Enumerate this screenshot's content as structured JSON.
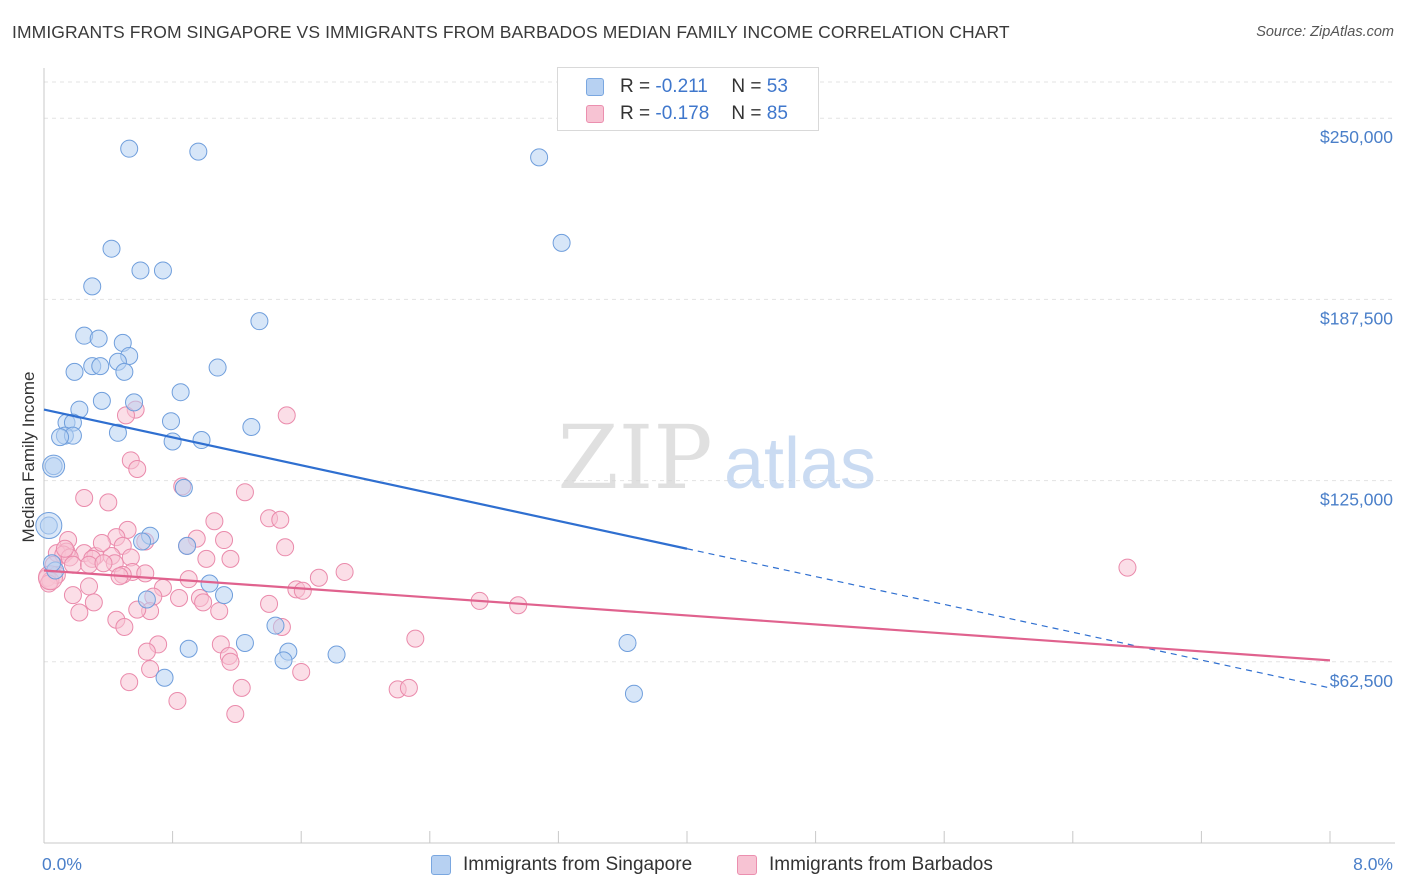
{
  "title": "IMMIGRANTS FROM SINGAPORE VS IMMIGRANTS FROM BARBADOS MEDIAN FAMILY INCOME CORRELATION CHART",
  "source": "Source: ZipAtlas.com",
  "watermark": {
    "zip": "ZIP",
    "atlas": "atlas"
  },
  "legend": {
    "rows": [
      {
        "r_label": "R =",
        "r_value": "-0.211",
        "n_label": "N =",
        "n_value": "53"
      },
      {
        "r_label": "R =",
        "r_value": "-0.178",
        "n_label": "N =",
        "n_value": "85"
      }
    ]
  },
  "bottom_legend": [
    "Immigrants from Singapore",
    "Immigrants from Barbados"
  ],
  "colors": {
    "singapore_fill": "#b7d1f2",
    "singapore_stroke": "#6f9edc",
    "singapore_line": "#2f6fd0",
    "barbados_fill": "#f7c3d3",
    "barbados_stroke": "#ea8aab",
    "barbados_line": "#e0628e",
    "tick_text": "#4a7fc9",
    "grid": "#e3e3e3"
  },
  "chart_data": {
    "type": "scatter",
    "title": "IMMIGRANTS FROM SINGAPORE VS IMMIGRANTS FROM BARBADOS MEDIAN FAMILY INCOME CORRELATION CHART",
    "xlabel": "",
    "ylabel": "Median Family Income",
    "xlim": [
      0,
      8.0
    ],
    "ylim": [
      0,
      262500
    ],
    "x_ticks": [
      "0.0%",
      "8.0%"
    ],
    "y_ticks": [
      {
        "value": 62500,
        "label": "$62,500"
      },
      {
        "value": 125000,
        "label": "$125,000"
      },
      {
        "value": 187500,
        "label": "$187,500"
      },
      {
        "value": 250000,
        "label": "$250,000"
      }
    ],
    "grid": "horizontal dashed",
    "legend_position": "top-center",
    "series": [
      {
        "name": "Immigrants from Singapore",
        "R": -0.211,
        "N": 53,
        "trend": {
          "x0": 0.0,
          "y0": 149500,
          "x1": 4.0,
          "y1": 101500,
          "dashed_to_x": 8.0,
          "dashed_to_y": 53500
        },
        "points": [
          [
            0.53,
            239500
          ],
          [
            0.96,
            238500
          ],
          [
            3.08,
            236500
          ],
          [
            0.42,
            205000
          ],
          [
            3.22,
            207000
          ],
          [
            0.6,
            197500
          ],
          [
            0.74,
            197500
          ],
          [
            0.3,
            192000
          ],
          [
            1.34,
            180000
          ],
          [
            0.25,
            175000
          ],
          [
            0.34,
            174000
          ],
          [
            0.49,
            172500
          ],
          [
            0.53,
            168000
          ],
          [
            0.46,
            166000
          ],
          [
            0.3,
            164500
          ],
          [
            0.35,
            164500
          ],
          [
            0.19,
            162500
          ],
          [
            0.5,
            162500
          ],
          [
            1.08,
            164000
          ],
          [
            0.85,
            155500
          ],
          [
            0.36,
            152500
          ],
          [
            0.56,
            152000
          ],
          [
            0.22,
            149500
          ],
          [
            0.14,
            145000
          ],
          [
            0.18,
            145000
          ],
          [
            0.79,
            145500
          ],
          [
            1.29,
            143500
          ],
          [
            0.46,
            141500
          ],
          [
            0.13,
            140500
          ],
          [
            0.18,
            140500
          ],
          [
            0.1,
            140000
          ],
          [
            0.98,
            139000
          ],
          [
            0.8,
            138500
          ],
          [
            0.06,
            130000
          ],
          [
            0.87,
            122500
          ],
          [
            0.03,
            109500
          ],
          [
            0.66,
            106000
          ],
          [
            0.61,
            104000
          ],
          [
            0.89,
            102500
          ],
          [
            0.07,
            94000
          ],
          [
            1.03,
            89500
          ],
          [
            1.12,
            85500
          ],
          [
            0.64,
            84000
          ],
          [
            1.44,
            75000
          ],
          [
            0.9,
            67000
          ],
          [
            1.25,
            69000
          ],
          [
            1.52,
            66000
          ],
          [
            1.49,
            63000
          ],
          [
            1.82,
            65000
          ],
          [
            3.63,
            69000
          ],
          [
            0.75,
            57000
          ],
          [
            3.67,
            51500
          ],
          [
            0.05,
            96500
          ]
        ]
      },
      {
        "name": "Immigrants from Barbados",
        "R": -0.178,
        "N": 85,
        "trend": {
          "x0": 0.0,
          "y0": 94000,
          "x1": 8.0,
          "y1": 63000
        },
        "points": [
          [
            1.51,
            147500
          ],
          [
            0.57,
            149500
          ],
          [
            0.51,
            147500
          ],
          [
            0.54,
            132000
          ],
          [
            0.58,
            129000
          ],
          [
            0.86,
            123000
          ],
          [
            1.25,
            121000
          ],
          [
            0.25,
            119000
          ],
          [
            0.4,
            117500
          ],
          [
            1.4,
            112000
          ],
          [
            1.47,
            111500
          ],
          [
            1.06,
            111000
          ],
          [
            0.52,
            108000
          ],
          [
            0.15,
            104500
          ],
          [
            0.45,
            105500
          ],
          [
            0.63,
            104000
          ],
          [
            0.95,
            105000
          ],
          [
            1.12,
            104500
          ],
          [
            0.49,
            102500
          ],
          [
            0.89,
            102500
          ],
          [
            1.5,
            102000
          ],
          [
            0.14,
            100500
          ],
          [
            0.08,
            100000
          ],
          [
            0.25,
            100000
          ],
          [
            0.12,
            99500
          ],
          [
            0.32,
            99000
          ],
          [
            0.42,
            99000
          ],
          [
            0.54,
            98500
          ],
          [
            0.16,
            98500
          ],
          [
            0.3,
            98000
          ],
          [
            1.01,
            98000
          ],
          [
            1.16,
            98000
          ],
          [
            0.44,
            96500
          ],
          [
            0.06,
            96000
          ],
          [
            0.18,
            96000
          ],
          [
            0.28,
            96000
          ],
          [
            0.37,
            96500
          ],
          [
            0.55,
            93500
          ],
          [
            0.63,
            93000
          ],
          [
            0.08,
            92500
          ],
          [
            1.87,
            93500
          ],
          [
            1.71,
            91500
          ],
          [
            0.49,
            92500
          ],
          [
            0.47,
            92000
          ],
          [
            0.02,
            91500
          ],
          [
            0.04,
            90500
          ],
          [
            0.03,
            89500
          ],
          [
            0.9,
            91000
          ],
          [
            0.28,
            88500
          ],
          [
            0.74,
            88000
          ],
          [
            1.57,
            87500
          ],
          [
            1.61,
            87000
          ],
          [
            0.18,
            85500
          ],
          [
            0.68,
            85000
          ],
          [
            0.84,
            84500
          ],
          [
            0.97,
            84500
          ],
          [
            0.31,
            83000
          ],
          [
            0.99,
            83000
          ],
          [
            1.4,
            82500
          ],
          [
            2.71,
            83500
          ],
          [
            2.95,
            82000
          ],
          [
            0.66,
            80000
          ],
          [
            0.22,
            79500
          ],
          [
            1.09,
            80000
          ],
          [
            0.58,
            80500
          ],
          [
            0.45,
            77000
          ],
          [
            0.5,
            74500
          ],
          [
            1.48,
            74500
          ],
          [
            2.31,
            70500
          ],
          [
            0.71,
            68500
          ],
          [
            1.1,
            68500
          ],
          [
            0.64,
            66000
          ],
          [
            1.15,
            64500
          ],
          [
            0.66,
            60000
          ],
          [
            1.6,
            59000
          ],
          [
            0.53,
            55500
          ],
          [
            1.23,
            53500
          ],
          [
            2.2,
            53000
          ],
          [
            2.27,
            53500
          ],
          [
            0.83,
            49000
          ],
          [
            1.19,
            44500
          ],
          [
            6.74,
            95000
          ],
          [
            1.16,
            62500
          ],
          [
            0.13,
            101500
          ],
          [
            0.36,
            103500
          ]
        ]
      }
    ]
  }
}
